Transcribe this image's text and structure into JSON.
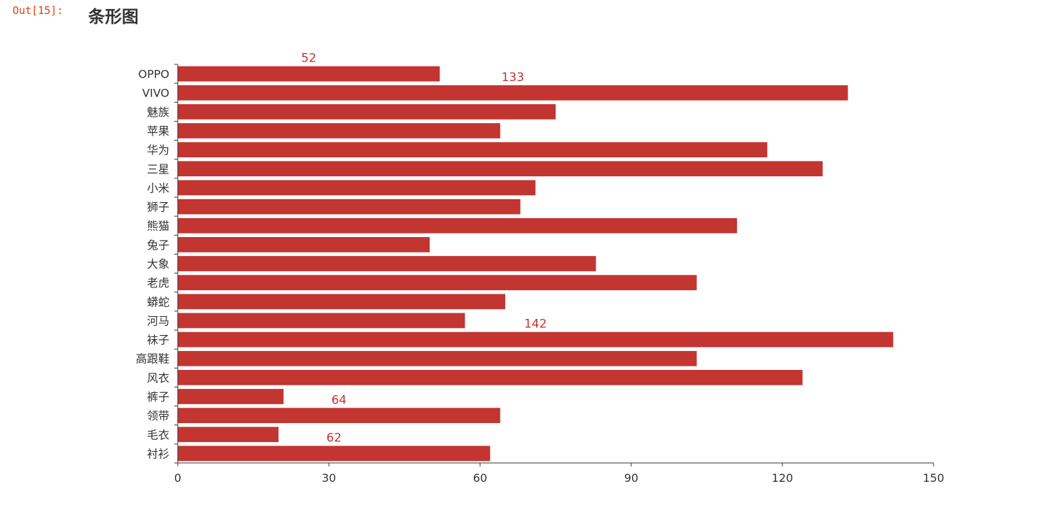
{
  "notebook": {
    "out_prompt": "Out[15]:"
  },
  "chart_data": {
    "type": "bar",
    "orientation": "horizontal",
    "title": "条形图",
    "categories": [
      "OPPO",
      "VIVO",
      "魅族",
      "苹果",
      "华为",
      "三星",
      "小米",
      "狮子",
      "熊猫",
      "兔子",
      "大象",
      "老虎",
      "蟒蛇",
      "河马",
      "袜子",
      "高跟鞋",
      "风衣",
      "裤子",
      "领带",
      "毛衣",
      "衬衫"
    ],
    "values": [
      52,
      133,
      75,
      64,
      117,
      128,
      71,
      68,
      111,
      50,
      83,
      103,
      65,
      57,
      142,
      103,
      124,
      21,
      64,
      20,
      62
    ],
    "xlim": [
      0,
      150
    ],
    "xticks": [
      0,
      30,
      60,
      90,
      120,
      150
    ],
    "data_labels": [
      {
        "category": "OPPO",
        "text": "52"
      },
      {
        "category": "VIVO",
        "text": "133"
      },
      {
        "category": "袜子",
        "text": "142"
      },
      {
        "category": "领带",
        "text": "64"
      },
      {
        "category": "衬衫",
        "text": "62"
      }
    ],
    "colors": {
      "bar": "#c23531",
      "label": "#c23531",
      "axis": "#333333",
      "tick_text": "#333333"
    },
    "grid": false,
    "legend": "none"
  }
}
